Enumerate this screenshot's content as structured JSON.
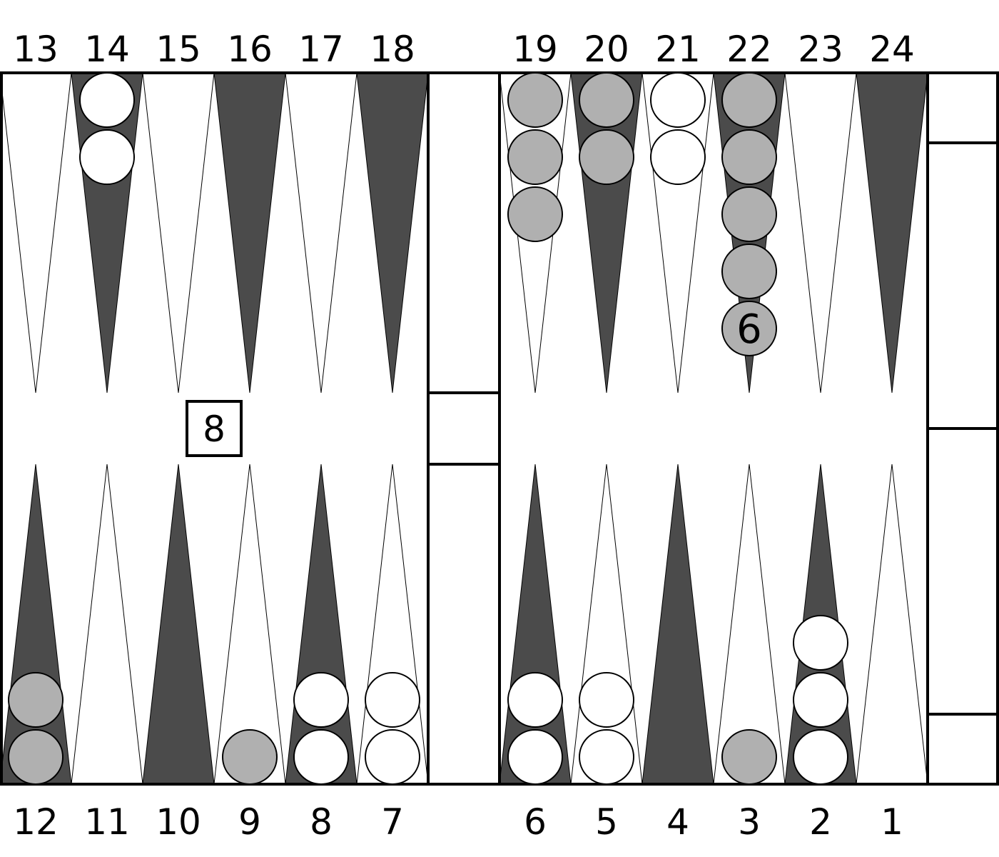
{
  "board": {
    "top_labels": [
      "13",
      "14",
      "15",
      "16",
      "17",
      "18",
      "19",
      "20",
      "21",
      "22",
      "23",
      "24"
    ],
    "bottom_labels": [
      "12",
      "11",
      "10",
      "9",
      "8",
      "7",
      "6",
      "5",
      "4",
      "3",
      "2",
      "1"
    ],
    "colors": {
      "dark_point": "#4b4b4b",
      "light_point": "#ffffff",
      "white_checker": "#ffffff",
      "gray_checker": "#b0b0b0",
      "outline": "#000000"
    },
    "doubling_cube": {
      "value": "8"
    },
    "stacks": [
      {
        "point": 14,
        "color": "white",
        "count": 2
      },
      {
        "point": 19,
        "color": "gray",
        "count": 3
      },
      {
        "point": 20,
        "color": "gray",
        "count": 2
      },
      {
        "point": 21,
        "color": "white",
        "count": 2
      },
      {
        "point": 22,
        "color": "gray",
        "count": 6,
        "label": "6"
      },
      {
        "point": 12,
        "color": "gray",
        "count": 2
      },
      {
        "point": 9,
        "color": "gray",
        "count": 1
      },
      {
        "point": 8,
        "color": "white",
        "count": 2
      },
      {
        "point": 7,
        "color": "white",
        "count": 2
      },
      {
        "point": 6,
        "color": "white",
        "count": 2
      },
      {
        "point": 5,
        "color": "white",
        "count": 2
      },
      {
        "point": 3,
        "color": "gray",
        "count": 1
      },
      {
        "point": 2,
        "color": "white",
        "count": 3
      }
    ]
  }
}
